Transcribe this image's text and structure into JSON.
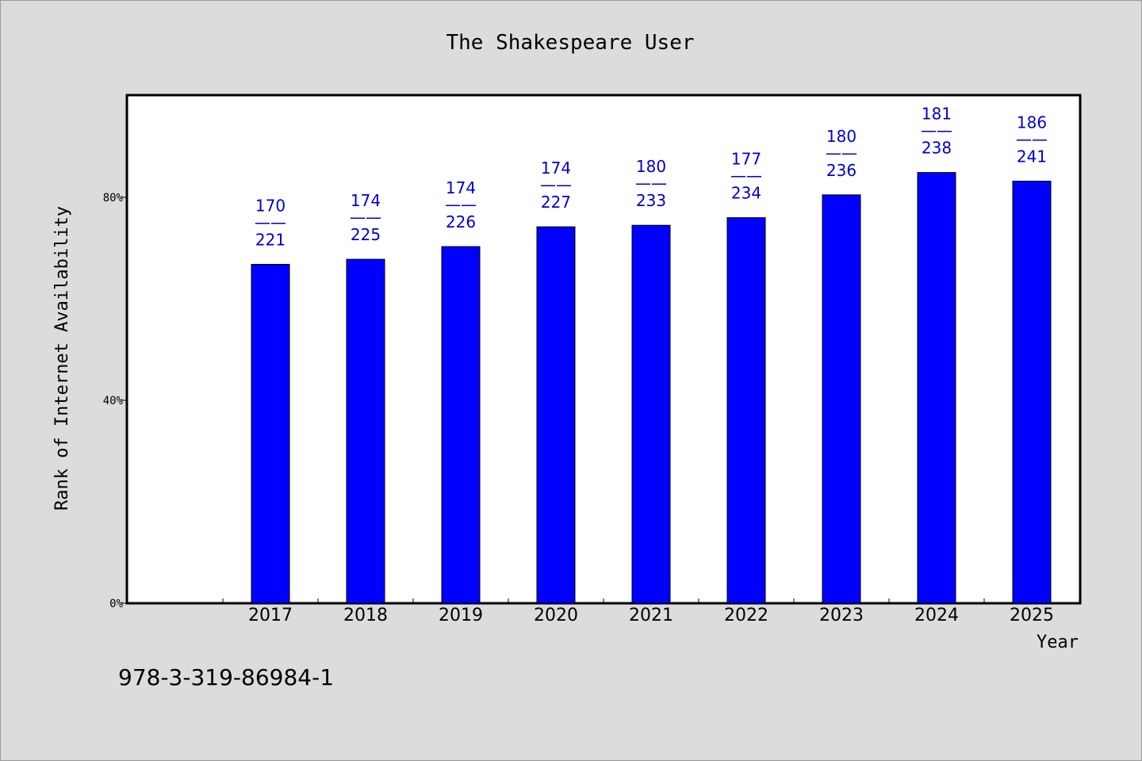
{
  "chart_data": {
    "type": "bar",
    "title": "The Shakespeare User",
    "xlabel": "Year",
    "ylabel": "Rank of Internet Availability",
    "categories": [
      "2017",
      "2018",
      "2019",
      "2020",
      "2021",
      "2022",
      "2023",
      "2024",
      "2025"
    ],
    "values": [
      66.8,
      67.8,
      70.3,
      74.2,
      74.5,
      76.0,
      80.5,
      84.9,
      83.2
    ],
    "value_labels": [
      {
        "top": "170",
        "bottom": "221"
      },
      {
        "top": "174",
        "bottom": "225"
      },
      {
        "top": "174",
        "bottom": "226"
      },
      {
        "top": "174",
        "bottom": "227"
      },
      {
        "top": "180",
        "bottom": "233"
      },
      {
        "top": "177",
        "bottom": "234"
      },
      {
        "top": "180",
        "bottom": "236"
      },
      {
        "top": "181",
        "bottom": "238"
      },
      {
        "top": "186",
        "bottom": "241"
      }
    ],
    "label_separator": "——",
    "yticks": [
      0,
      40,
      80
    ],
    "ytick_labels": [
      "0%",
      "40%",
      "80%"
    ],
    "ylim": [
      0,
      100
    ],
    "grid": false,
    "legend": "none",
    "bar_color": "#0000ff",
    "label_color": "#0000cc"
  },
  "footnote": "978-3-319-86984-1"
}
